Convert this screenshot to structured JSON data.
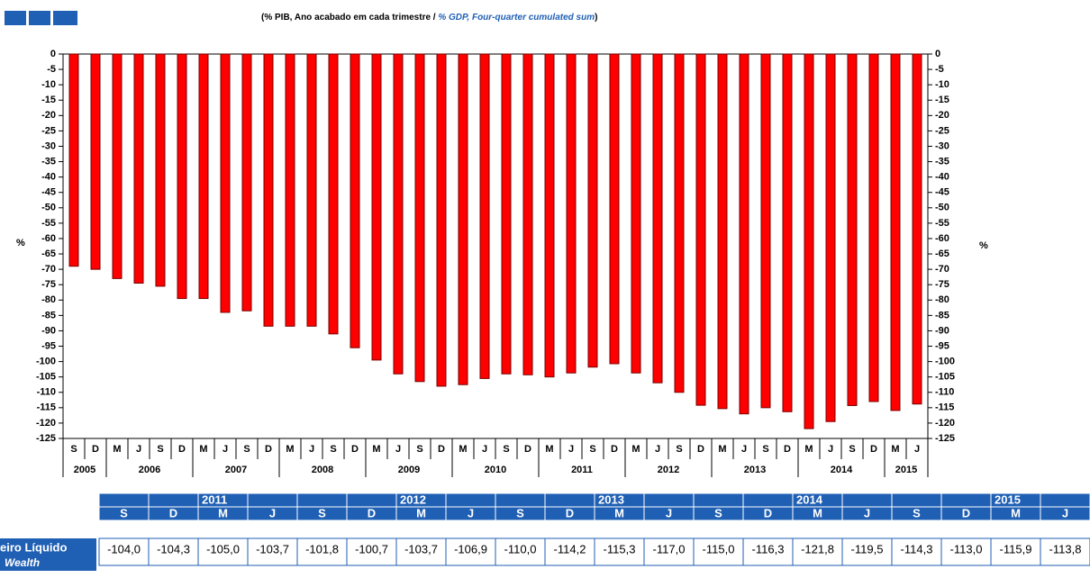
{
  "chart_data": {
    "type": "bar",
    "title": "(% PIB, Ano acabado em cada trimestre / ",
    "title_en": "% GDP, Four-quarter cumulated sum",
    "title_close": ")",
    "ylabel": "%",
    "y2label": "%",
    "categories": [
      "S",
      "D",
      "M",
      "J",
      "S",
      "D",
      "M",
      "J",
      "S",
      "D",
      "M",
      "J",
      "S",
      "D",
      "M",
      "J",
      "S",
      "D",
      "M",
      "J",
      "S",
      "D",
      "M",
      "J",
      "S",
      "D",
      "M",
      "J",
      "S",
      "D",
      "M",
      "J",
      "S",
      "D",
      "M",
      "J",
      "S",
      "D",
      "M",
      "J"
    ],
    "years": [
      "2005",
      "2006",
      "2007",
      "2008",
      "2009",
      "2010",
      "2011",
      "2012",
      "2013",
      "2014",
      "2015"
    ],
    "series": [
      {
        "color": "#ff0000",
        "values": [
          -69,
          -70,
          -73,
          -74.5,
          -75.5,
          -79.5,
          -79.5,
          -84,
          -83.5,
          -88.5,
          -88.5,
          -88.5,
          -91,
          -95.5,
          -99.5,
          -104,
          -106.5,
          -108,
          -107.5,
          -105.5,
          -104.0,
          -104.3,
          -105.0,
          -103.7,
          -101.8,
          -100.7,
          -103.7,
          -106.9,
          -110.0,
          -114.2,
          -115.3,
          -117.0,
          -115.0,
          -116.3,
          -121.8,
          -119.5,
          -114.3,
          -113.0,
          -115.9,
          -113.8
        ]
      }
    ],
    "ylim": [
      0,
      -125
    ],
    "yticks": [
      0,
      -5,
      -10,
      -15,
      -20,
      -25,
      -30,
      -35,
      -40,
      -45,
      -50,
      -55,
      -60,
      -65,
      -70,
      -75,
      -80,
      -85,
      -90,
      -95,
      -100,
      -105,
      -110,
      -115,
      -120,
      -125
    ],
    "table": {
      "years": [
        null,
        null,
        "2011",
        null,
        null,
        null,
        "2012",
        null,
        null,
        null,
        "2013",
        null,
        null,
        null,
        "2014",
        null,
        null,
        null,
        "2015",
        null
      ],
      "columns": [
        "S",
        "D",
        "M",
        "J",
        "S",
        "D",
        "M",
        "J",
        "S",
        "D",
        "M",
        "J",
        "S",
        "D",
        "M",
        "J",
        "S",
        "D",
        "M",
        "J"
      ],
      "row_label": [
        "eiro Líquido",
        "Wealth"
      ],
      "cells": [
        "-104,0",
        "-104,3",
        "-105,0",
        "-103,7",
        "-101,8",
        "-100,7",
        "-103,7",
        "-106,9",
        "-110,0",
        "-114,2",
        "-115,3",
        "-117,0",
        "-115,0",
        "-116,3",
        "-121,8",
        "-119,5",
        "-114,3",
        "-113,0",
        "-115,9",
        "-113,8"
      ]
    }
  }
}
